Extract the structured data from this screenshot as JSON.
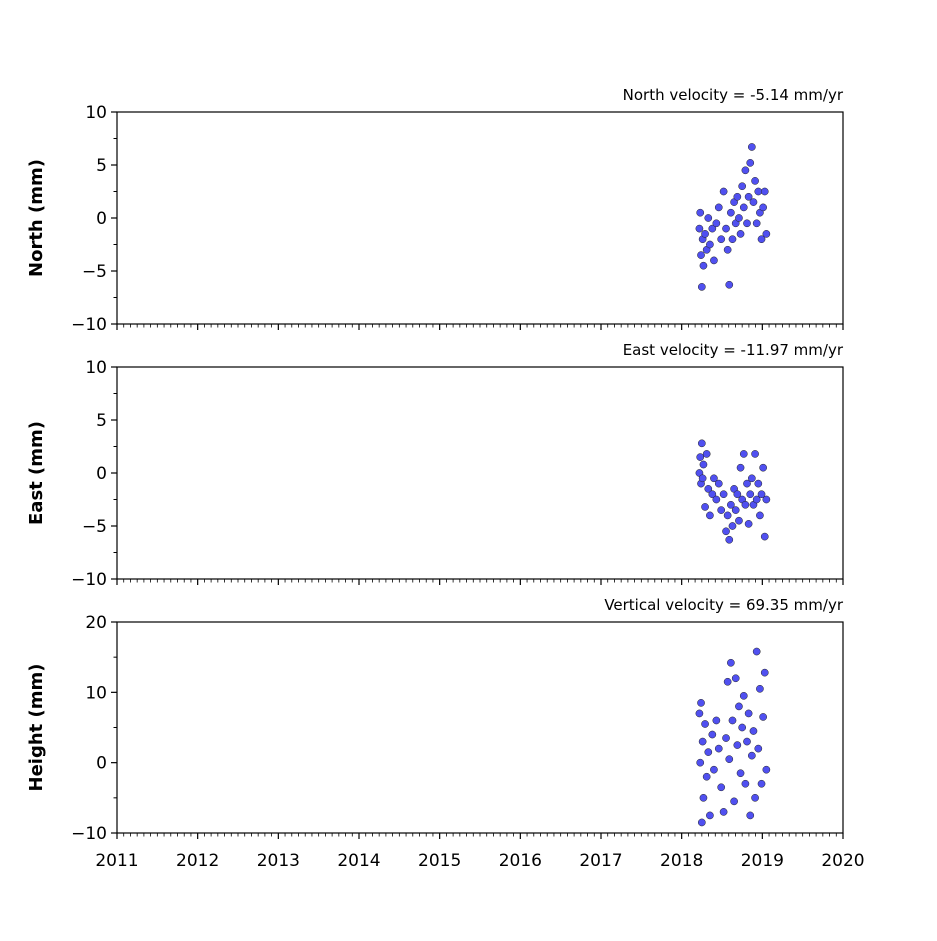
{
  "chart_data": [
    {
      "type": "scatter",
      "title": "North velocity = -5.14 mm/yr",
      "y_label": "North (mm)",
      "color": "#5050f0",
      "xlim": [
        2011,
        2020
      ],
      "xticks": [
        2011,
        2012,
        2013,
        2014,
        2015,
        2016,
        2017,
        2018,
        2019,
        2020
      ],
      "ylim": [
        -10,
        10
      ],
      "yticks": [
        {
          "value": -10,
          "label": "−10"
        },
        {
          "value": -5,
          "label": "−5"
        },
        0,
        5,
        10
      ],
      "x": [
        2018.22,
        2018.23,
        2018.24,
        2018.25,
        2018.26,
        2018.27,
        2018.29,
        2018.31,
        2018.33,
        2018.35,
        2018.38,
        2018.4,
        2018.43,
        2018.46,
        2018.49,
        2018.52,
        2018.55,
        2018.57,
        2018.59,
        2018.61,
        2018.63,
        2018.65,
        2018.67,
        2018.69,
        2018.71,
        2018.73,
        2018.75,
        2018.77,
        2018.79,
        2018.81,
        2018.83,
        2018.85,
        2018.87,
        2018.89,
        2018.91,
        2018.93,
        2018.95,
        2018.97,
        2018.99,
        2019.01,
        2019.03,
        2019.05
      ],
      "values": [
        -1.0,
        0.5,
        -3.5,
        -6.5,
        -2.0,
        -4.5,
        -1.5,
        -3.0,
        0.0,
        -2.5,
        -1.0,
        -4.0,
        -0.5,
        1.0,
        -2.0,
        2.5,
        -1.0,
        -3.0,
        -6.3,
        0.5,
        -2.0,
        1.5,
        -0.5,
        2.0,
        0.0,
        -1.5,
        3.0,
        1.0,
        4.5,
        -0.5,
        2.0,
        5.2,
        6.7,
        1.5,
        3.5,
        -0.5,
        2.5,
        0.5,
        -2.0,
        1.0,
        2.5,
        -1.5
      ]
    },
    {
      "type": "scatter",
      "title": "East velocity = -11.97 mm/yr",
      "y_label": "East (mm)",
      "color": "#5050f0",
      "xlim": [
        2011,
        2020
      ],
      "xticks": [
        2011,
        2012,
        2013,
        2014,
        2015,
        2016,
        2017,
        2018,
        2019,
        2020
      ],
      "ylim": [
        -10,
        10
      ],
      "yticks": [
        {
          "value": -10,
          "label": "−10"
        },
        {
          "value": -5,
          "label": "−5"
        },
        0,
        5,
        10
      ],
      "x": [
        2018.22,
        2018.23,
        2018.24,
        2018.25,
        2018.26,
        2018.27,
        2018.29,
        2018.31,
        2018.33,
        2018.35,
        2018.38,
        2018.4,
        2018.43,
        2018.46,
        2018.49,
        2018.52,
        2018.55,
        2018.57,
        2018.59,
        2018.61,
        2018.63,
        2018.65,
        2018.67,
        2018.69,
        2018.71,
        2018.73,
        2018.75,
        2018.77,
        2018.79,
        2018.81,
        2018.83,
        2018.85,
        2018.87,
        2018.89,
        2018.91,
        2018.93,
        2018.95,
        2018.97,
        2018.99,
        2019.01,
        2019.03,
        2019.05
      ],
      "values": [
        0.0,
        1.5,
        -1.0,
        2.8,
        -0.5,
        0.8,
        -3.2,
        1.8,
        -1.5,
        -4.0,
        -2.0,
        -0.5,
        -2.5,
        -1.0,
        -3.5,
        -2.0,
        -5.5,
        -4.0,
        -6.3,
        -3.0,
        -5.0,
        -1.5,
        -3.5,
        -2.0,
        -4.5,
        0.5,
        -2.5,
        1.8,
        -3.0,
        -1.0,
        -4.8,
        -2.0,
        -0.5,
        -3.0,
        1.8,
        -2.5,
        -1.0,
        -4.0,
        -2.0,
        0.5,
        -6.0,
        -2.5
      ]
    },
    {
      "type": "scatter",
      "title": "Vertical velocity = 69.35 mm/yr",
      "y_label": "Height (mm)",
      "color": "#5050f0",
      "xlim": [
        2011,
        2020
      ],
      "xticks": [
        2011,
        2012,
        2013,
        2014,
        2015,
        2016,
        2017,
        2018,
        2019,
        2020
      ],
      "ylim": [
        -10,
        20
      ],
      "yticks": [
        {
          "value": -10,
          "label": "−10"
        },
        0,
        10,
        20
      ],
      "x": [
        2018.22,
        2018.23,
        2018.24,
        2018.25,
        2018.26,
        2018.27,
        2018.29,
        2018.31,
        2018.33,
        2018.35,
        2018.38,
        2018.4,
        2018.43,
        2018.46,
        2018.49,
        2018.52,
        2018.55,
        2018.57,
        2018.59,
        2018.61,
        2018.63,
        2018.65,
        2018.67,
        2018.69,
        2018.71,
        2018.73,
        2018.75,
        2018.77,
        2018.79,
        2018.81,
        2018.83,
        2018.85,
        2018.87,
        2018.89,
        2018.91,
        2018.93,
        2018.95,
        2018.97,
        2018.99,
        2019.01,
        2019.03,
        2019.05
      ],
      "values": [
        7.0,
        0.0,
        8.5,
        -8.5,
        3.0,
        -5.0,
        5.5,
        -2.0,
        1.5,
        -7.5,
        4.0,
        -1.0,
        6.0,
        2.0,
        -3.5,
        -7.0,
        3.5,
        11.5,
        0.5,
        14.2,
        6.0,
        -5.5,
        12.0,
        2.5,
        8.0,
        -1.5,
        5.0,
        9.5,
        -3.0,
        3.0,
        7.0,
        -7.5,
        1.0,
        4.5,
        -5.0,
        15.8,
        2.0,
        10.5,
        -3.0,
        6.5,
        12.8,
        -1.0
      ]
    }
  ]
}
